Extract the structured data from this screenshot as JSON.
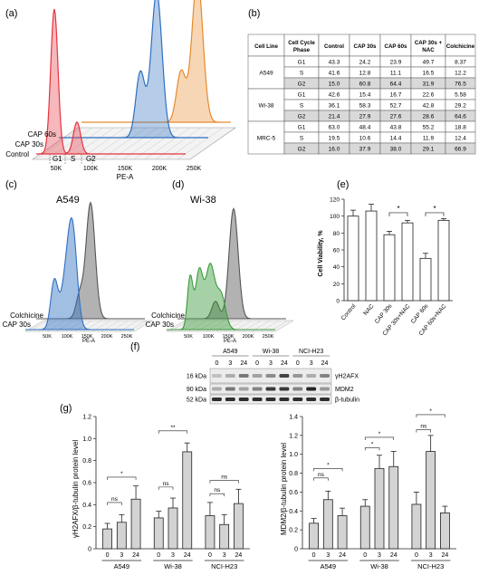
{
  "panels": {
    "a": "(a)",
    "b": "(b)",
    "c": "(c)",
    "d": "(d)",
    "e": "(e)",
    "f": "(f)",
    "g": "(g)"
  },
  "panel_a": {
    "xlabel": "PE-A",
    "ticks": [
      "50K",
      "100K",
      "150K",
      "200K",
      "250K"
    ],
    "phase_labels": [
      "G1",
      "S",
      "G2"
    ],
    "series_labels": [
      "CAP 60s",
      "CAP 30s",
      "Control"
    ],
    "colors": {
      "control": "#e5333f",
      "cap30": "#2f6fc0",
      "cap60": "#e88a2a"
    }
  },
  "table": {
    "columns": [
      "Cell Line",
      "Cell Cycle Phase",
      "Control",
      "CAP 30s",
      "CAP 60s",
      "CAP 30s + NAC",
      "Colchicine"
    ],
    "groups": [
      {
        "cell_line": "A549",
        "rows": [
          [
            "G1",
            "43.3",
            "24.2",
            "23.9",
            "49.7",
            "8.37"
          ],
          [
            "S",
            "41.6",
            "12.8",
            "11.1",
            "16.5",
            "12.2"
          ],
          [
            "G2",
            "15.0",
            "60.8",
            "64.4",
            "31.9",
            "76.5"
          ]
        ]
      },
      {
        "cell_line": "Wi-38",
        "rows": [
          [
            "G1",
            "42.6",
            "15.4",
            "16.7",
            "22.6",
            "5.58"
          ],
          [
            "S",
            "36.1",
            "58.3",
            "52.7",
            "42.8",
            "29.2"
          ],
          [
            "G2",
            "21.4",
            "27.9",
            "27.6",
            "28.6",
            "64.6"
          ]
        ]
      },
      {
        "cell_line": "MRC-5",
        "rows": [
          [
            "G1",
            "63.0",
            "48.4",
            "43.8",
            "55.2",
            "18.8"
          ],
          [
            "S",
            "19.5",
            "10.6",
            "14.4",
            "11.9",
            "12.4"
          ],
          [
            "G2",
            "16.0",
            "37.9",
            "38.0",
            "29.1",
            "66.9"
          ]
        ]
      }
    ]
  },
  "panel_c": {
    "title": "A549",
    "xlabel": "PE-A",
    "ticks": [
      "50K",
      "100K",
      "150K",
      "200K",
      "250K"
    ],
    "labels": [
      "Colchicine",
      "CAP 30s"
    ],
    "colors": {
      "cap": "#2f6fc0",
      "colchicine": "#555555"
    }
  },
  "panel_d": {
    "title": "Wi-38",
    "xlabel": "PE-A",
    "ticks": [
      "50K",
      "100K",
      "150K",
      "200K",
      "250K"
    ],
    "labels": [
      "Colchicine",
      "CAP 30s"
    ],
    "colors": {
      "cap": "#3a9a3a",
      "colchicine": "#555555"
    }
  },
  "panel_f": {
    "groups": [
      "A549",
      "Wi-38",
      "NCI-H23"
    ],
    "times": [
      "0",
      "3",
      "24"
    ],
    "kda": [
      "16 kDa",
      "90 kDa",
      "52 kDa"
    ],
    "proteins": [
      "γH2AFX",
      "MDM2",
      "β-tubulin"
    ]
  },
  "chart_data": [
    {
      "type": "bar",
      "ylabel": "Cell Viability, %",
      "categories": [
        "Control",
        "NAC",
        "CAP 30s",
        "CAP 30s+NAC",
        "CAP 60s",
        "CAP 60s+NAC"
      ],
      "values": [
        100,
        106,
        78,
        92,
        50,
        95
      ],
      "errors": [
        7,
        8,
        4,
        3,
        6,
        2
      ],
      "ylim": [
        0,
        120
      ],
      "yticks": [
        "0",
        "20",
        "40",
        "60",
        "80",
        "100",
        "120"
      ],
      "significance": [
        "*",
        "*"
      ]
    },
    {
      "type": "bar",
      "ylabel": "γH2AFX/β-tubulin protein level",
      "groups": [
        "A549",
        "Wi-38",
        "NCI-H23"
      ],
      "categories": [
        "0",
        "3",
        "24",
        "0",
        "3",
        "24",
        "0",
        "3",
        "24"
      ],
      "values": [
        0.18,
        0.24,
        0.45,
        0.28,
        0.37,
        0.88,
        0.3,
        0.22,
        0.41
      ],
      "errors": [
        0.05,
        0.07,
        0.12,
        0.06,
        0.09,
        0.08,
        0.12,
        0.09,
        0.13
      ],
      "ylim": [
        0,
        1.2
      ],
      "yticks": [
        "0",
        "0.2",
        "0.4",
        "0.6",
        "0.8",
        "1.0",
        "1.2"
      ],
      "significance": [
        "ns",
        "*",
        "ns",
        "**",
        "ns",
        "ns"
      ]
    },
    {
      "type": "bar",
      "ylabel": "MDM2/β-tubulin protein level",
      "groups": [
        "A549",
        "Wi-38",
        "NCI-H23"
      ],
      "categories": [
        "0",
        "3",
        "24",
        "0",
        "3",
        "24",
        "0",
        "3",
        "24"
      ],
      "values": [
        0.27,
        0.52,
        0.35,
        0.45,
        0.85,
        0.87,
        0.47,
        1.03,
        0.38
      ],
      "errors": [
        0.05,
        0.09,
        0.08,
        0.07,
        0.14,
        0.16,
        0.13,
        0.17,
        0.07
      ],
      "ylim": [
        0,
        1.4
      ],
      "yticks": [
        "0",
        "0.2",
        "0.4",
        "0.6",
        "0.8",
        "1.0",
        "1.2",
        "1.4"
      ],
      "significance": [
        "ns",
        "*",
        "*",
        "*",
        "ns",
        "*"
      ]
    }
  ]
}
